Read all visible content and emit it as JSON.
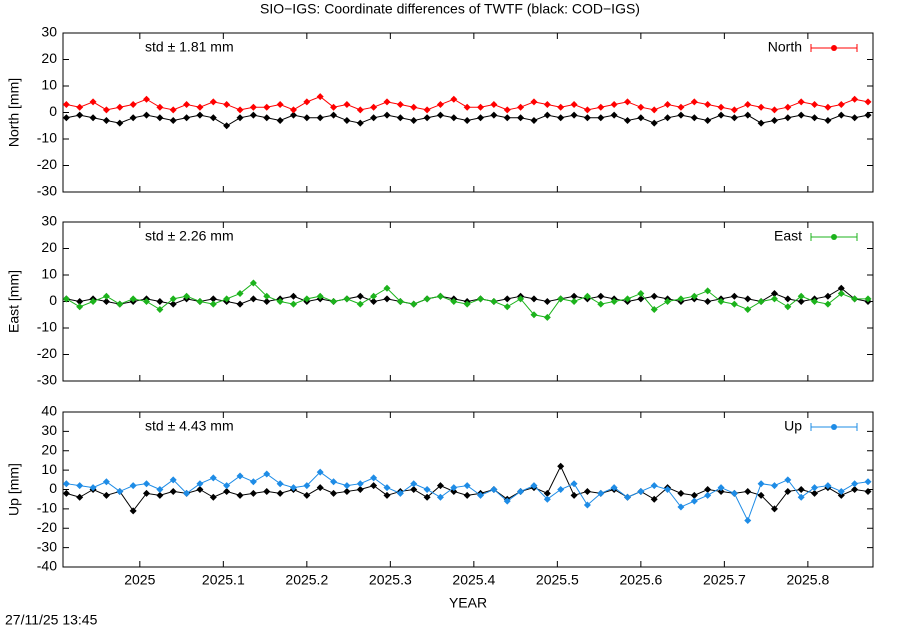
{
  "title": "SIO−IGS: Coordinate differences of TWTF (black: COD−IGS)",
  "footer": "27/11/25 13:45",
  "chart_data": [
    {
      "type": "line",
      "ylabel": "North [mm]",
      "annotation": "std ± 1.81 mm",
      "annotation_color": "#ff0000",
      "legend": "top-right",
      "x": [
        2024.912,
        2024.928,
        2024.944,
        2024.96,
        2024.976,
        2024.992,
        2025.008,
        2025.024,
        2025.04,
        2025.056,
        2025.072,
        2025.088,
        2025.104,
        2025.12,
        2025.136,
        2025.152,
        2025.168,
        2025.184,
        2025.2,
        2025.216,
        2025.232,
        2025.248,
        2025.264,
        2025.28,
        2025.296,
        2025.312,
        2025.328,
        2025.344,
        2025.36,
        2025.376,
        2025.392,
        2025.408,
        2025.424,
        2025.44,
        2025.456,
        2025.472,
        2025.488,
        2025.504,
        2025.52,
        2025.536,
        2025.552,
        2025.568,
        2025.584,
        2025.6,
        2025.616,
        2025.632,
        2025.648,
        2025.664,
        2025.68,
        2025.696,
        2025.712,
        2025.728,
        2025.744,
        2025.76,
        2025.776,
        2025.792,
        2025.808,
        2025.824,
        2025.84,
        2025.856,
        2025.872
      ],
      "xlim": [
        2024.908,
        2025.878
      ],
      "ylim": [
        -30,
        30
      ],
      "yticks": [
        -30,
        -20,
        -10,
        0,
        10,
        20,
        30
      ],
      "series": [
        {
          "color": "#000000",
          "values": [
            -2,
            -1,
            -2,
            -3,
            -4,
            -2,
            -1,
            -2,
            -3,
            -2,
            -1,
            -2,
            -5,
            -2,
            -1,
            -2,
            -3,
            -1,
            -2,
            -2,
            -1,
            -3,
            -4,
            -2,
            -1,
            -2,
            -3,
            -2,
            -1,
            -2,
            -3,
            -2,
            -1,
            -2,
            -2,
            -3,
            -1,
            -2,
            -1,
            -2,
            -2,
            -1,
            -3,
            -2,
            -4,
            -2,
            -1,
            -2,
            -3,
            -1,
            -2,
            -1,
            -4,
            -3,
            -2,
            -1,
            -2,
            -3,
            -1,
            -2,
            -1
          ]
        },
        {
          "name": "North",
          "color": "#ff0000",
          "values": [
            3,
            2,
            4,
            1,
            2,
            3,
            5,
            2,
            1,
            3,
            2,
            4,
            3,
            1,
            2,
            2,
            3,
            1,
            4,
            6,
            2,
            3,
            1,
            2,
            4,
            3,
            2,
            1,
            3,
            5,
            2,
            2,
            3,
            1,
            2,
            4,
            3,
            2,
            3,
            1,
            2,
            3,
            4,
            2,
            1,
            3,
            2,
            4,
            3,
            2,
            1,
            3,
            2,
            1,
            2,
            4,
            3,
            2,
            3,
            5,
            4
          ]
        }
      ]
    },
    {
      "type": "line",
      "ylabel": "East [mm]",
      "annotation": "std ± 2.26 mm",
      "annotation_color": "#1cb31c",
      "legend": "top-right",
      "x": [
        2024.912,
        2024.928,
        2024.944,
        2024.96,
        2024.976,
        2024.992,
        2025.008,
        2025.024,
        2025.04,
        2025.056,
        2025.072,
        2025.088,
        2025.104,
        2025.12,
        2025.136,
        2025.152,
        2025.168,
        2025.184,
        2025.2,
        2025.216,
        2025.232,
        2025.248,
        2025.264,
        2025.28,
        2025.296,
        2025.312,
        2025.328,
        2025.344,
        2025.36,
        2025.376,
        2025.392,
        2025.408,
        2025.424,
        2025.44,
        2025.456,
        2025.472,
        2025.488,
        2025.504,
        2025.52,
        2025.536,
        2025.552,
        2025.568,
        2025.584,
        2025.6,
        2025.616,
        2025.632,
        2025.648,
        2025.664,
        2025.68,
        2025.696,
        2025.712,
        2025.728,
        2025.744,
        2025.76,
        2025.776,
        2025.792,
        2025.808,
        2025.824,
        2025.84,
        2025.856,
        2025.872
      ],
      "xlim": [
        2024.908,
        2025.878
      ],
      "ylim": [
        -30,
        30
      ],
      "yticks": [
        -30,
        -20,
        -10,
        0,
        10,
        20,
        30
      ],
      "series": [
        {
          "color": "#000000",
          "values": [
            1,
            0,
            1,
            0,
            -1,
            0,
            1,
            0,
            -1,
            1,
            0,
            1,
            0,
            -1,
            1,
            0,
            1,
            2,
            0,
            1,
            0,
            1,
            2,
            0,
            1,
            0,
            -1,
            1,
            2,
            1,
            0,
            1,
            0,
            1,
            2,
            1,
            0,
            1,
            2,
            1,
            2,
            1,
            0,
            1,
            2,
            1,
            0,
            1,
            0,
            1,
            2,
            1,
            0,
            3,
            1,
            0,
            1,
            2,
            5,
            1,
            0
          ]
        },
        {
          "name": "East",
          "color": "#1cb31c",
          "values": [
            1,
            -2,
            0,
            2,
            -1,
            1,
            0,
            -3,
            1,
            2,
            0,
            -1,
            1,
            3,
            7,
            2,
            0,
            -1,
            1,
            2,
            0,
            1,
            -1,
            2,
            5,
            0,
            -1,
            1,
            2,
            0,
            -1,
            1,
            0,
            -2,
            1,
            -5,
            -6,
            1,
            0,
            2,
            -1,
            0,
            1,
            3,
            -3,
            0,
            1,
            2,
            4,
            0,
            -1,
            -3,
            0,
            1,
            -2,
            2,
            0,
            -1,
            3,
            1,
            1
          ]
        }
      ]
    },
    {
      "type": "line",
      "ylabel": "Up [mm]",
      "xlabel": "YEAR",
      "annotation": "std ± 4.43 mm",
      "annotation_color": "#1e8ce6",
      "legend": "top-right",
      "x": [
        2024.912,
        2024.928,
        2024.944,
        2024.96,
        2024.976,
        2024.992,
        2025.008,
        2025.024,
        2025.04,
        2025.056,
        2025.072,
        2025.088,
        2025.104,
        2025.12,
        2025.136,
        2025.152,
        2025.168,
        2025.184,
        2025.2,
        2025.216,
        2025.232,
        2025.248,
        2025.264,
        2025.28,
        2025.296,
        2025.312,
        2025.328,
        2025.344,
        2025.36,
        2025.376,
        2025.392,
        2025.408,
        2025.424,
        2025.44,
        2025.456,
        2025.472,
        2025.488,
        2025.504,
        2025.52,
        2025.536,
        2025.552,
        2025.568,
        2025.584,
        2025.6,
        2025.616,
        2025.632,
        2025.648,
        2025.664,
        2025.68,
        2025.696,
        2025.712,
        2025.728,
        2025.744,
        2025.76,
        2025.776,
        2025.792,
        2025.808,
        2025.824,
        2025.84,
        2025.856,
        2025.872
      ],
      "xlim": [
        2024.908,
        2025.878
      ],
      "xticks": [
        2025,
        2025.1,
        2025.2,
        2025.3,
        2025.4,
        2025.5,
        2025.6,
        2025.7,
        2025.8
      ],
      "ylim": [
        -40,
        40
      ],
      "yticks": [
        -40,
        -30,
        -20,
        -10,
        0,
        10,
        20,
        30,
        40
      ],
      "series": [
        {
          "color": "#000000",
          "values": [
            -2,
            -4,
            0,
            -3,
            -1,
            -11,
            -2,
            -3,
            -1,
            -2,
            0,
            -4,
            -1,
            -3,
            -2,
            -1,
            -2,
            0,
            -3,
            1,
            -2,
            -1,
            0,
            2,
            -3,
            -1,
            0,
            -4,
            2,
            -1,
            -3,
            -2,
            0,
            -5,
            -1,
            1,
            -2,
            12,
            -3,
            -1,
            -2,
            0,
            -4,
            -1,
            -5,
            1,
            -2,
            -3,
            0,
            -1,
            -2,
            -1,
            -3,
            -10,
            -1,
            0,
            -2,
            1,
            -3,
            0,
            -1
          ]
        },
        {
          "name": "Up",
          "color": "#1e8ce6",
          "values": [
            3,
            2,
            1,
            4,
            -1,
            2,
            3,
            0,
            5,
            -2,
            3,
            6,
            2,
            7,
            4,
            8,
            3,
            1,
            2,
            9,
            4,
            2,
            3,
            6,
            1,
            -2,
            3,
            0,
            -4,
            1,
            2,
            -3,
            0,
            -6,
            -1,
            2,
            -5,
            0,
            3,
            -8,
            -2,
            1,
            -4,
            -1,
            2,
            0,
            -9,
            -6,
            -3,
            1,
            -2,
            -16,
            3,
            2,
            5,
            -4,
            1,
            2,
            -1,
            3,
            4
          ]
        }
      ]
    }
  ]
}
